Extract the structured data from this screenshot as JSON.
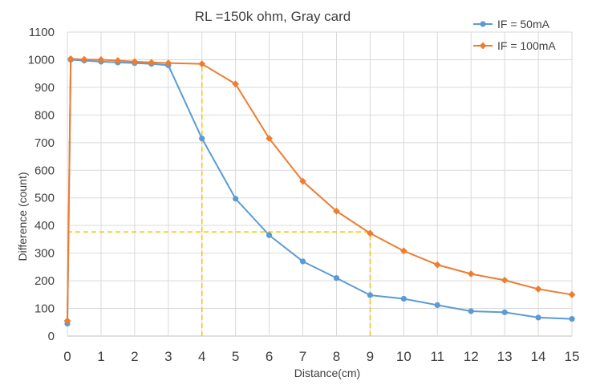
{
  "chart_data": {
    "type": "line",
    "title": "RL =150k ohm, Gray card",
    "xlabel": "Distance(cm)",
    "ylabel": "Difference (count)",
    "xlim": [
      0,
      15
    ],
    "ylim": [
      0,
      1100
    ],
    "x_ticks": [
      "0",
      "1",
      "2",
      "3",
      "4",
      "5",
      "6",
      "7",
      "8",
      "9",
      "10",
      "11",
      "12",
      "13",
      "14",
      "15"
    ],
    "y_ticks": [
      "0",
      "100",
      "200",
      "300",
      "400",
      "500",
      "600",
      "700",
      "800",
      "900",
      "1000",
      "1100"
    ],
    "grid": true,
    "legend_position": "top-right",
    "series": [
      {
        "name": "IF = 50mA",
        "color": "#5B9BD5",
        "marker": "circle",
        "x": [
          0,
          0.1,
          0.5,
          1,
          1.5,
          2,
          2.5,
          3,
          4,
          5,
          6,
          7,
          8,
          9,
          10,
          11,
          12,
          13,
          14,
          15
        ],
        "y": [
          45,
          1000,
          997,
          993,
          990,
          988,
          985,
          980,
          715,
          497,
          365,
          270,
          210,
          148,
          135,
          112,
          90,
          86,
          67,
          62
        ]
      },
      {
        "name": "IF = 100mA",
        "color": "#ED7D31",
        "marker": "diamond",
        "x": [
          0,
          0.1,
          0.5,
          1,
          1.5,
          2,
          2.5,
          3,
          4,
          5,
          6,
          7,
          8,
          9,
          10,
          11,
          12,
          13,
          14,
          15
        ],
        "y": [
          55,
          1003,
          1001,
          1000,
          997,
          993,
          990,
          988,
          985,
          912,
          715,
          560,
          452,
          372,
          308,
          258,
          225,
          202,
          170,
          150
        ]
      }
    ],
    "reference_lines": {
      "color": "#FFC000",
      "style": "dashed",
      "vertical": [
        {
          "x": 4,
          "y_from": 0,
          "y_to": 985
        },
        {
          "x": 9,
          "y_from": 0,
          "y_to": 372
        }
      ],
      "horizontal": [
        {
          "y": 377,
          "x_from": 0,
          "x_to": 9
        }
      ]
    }
  }
}
